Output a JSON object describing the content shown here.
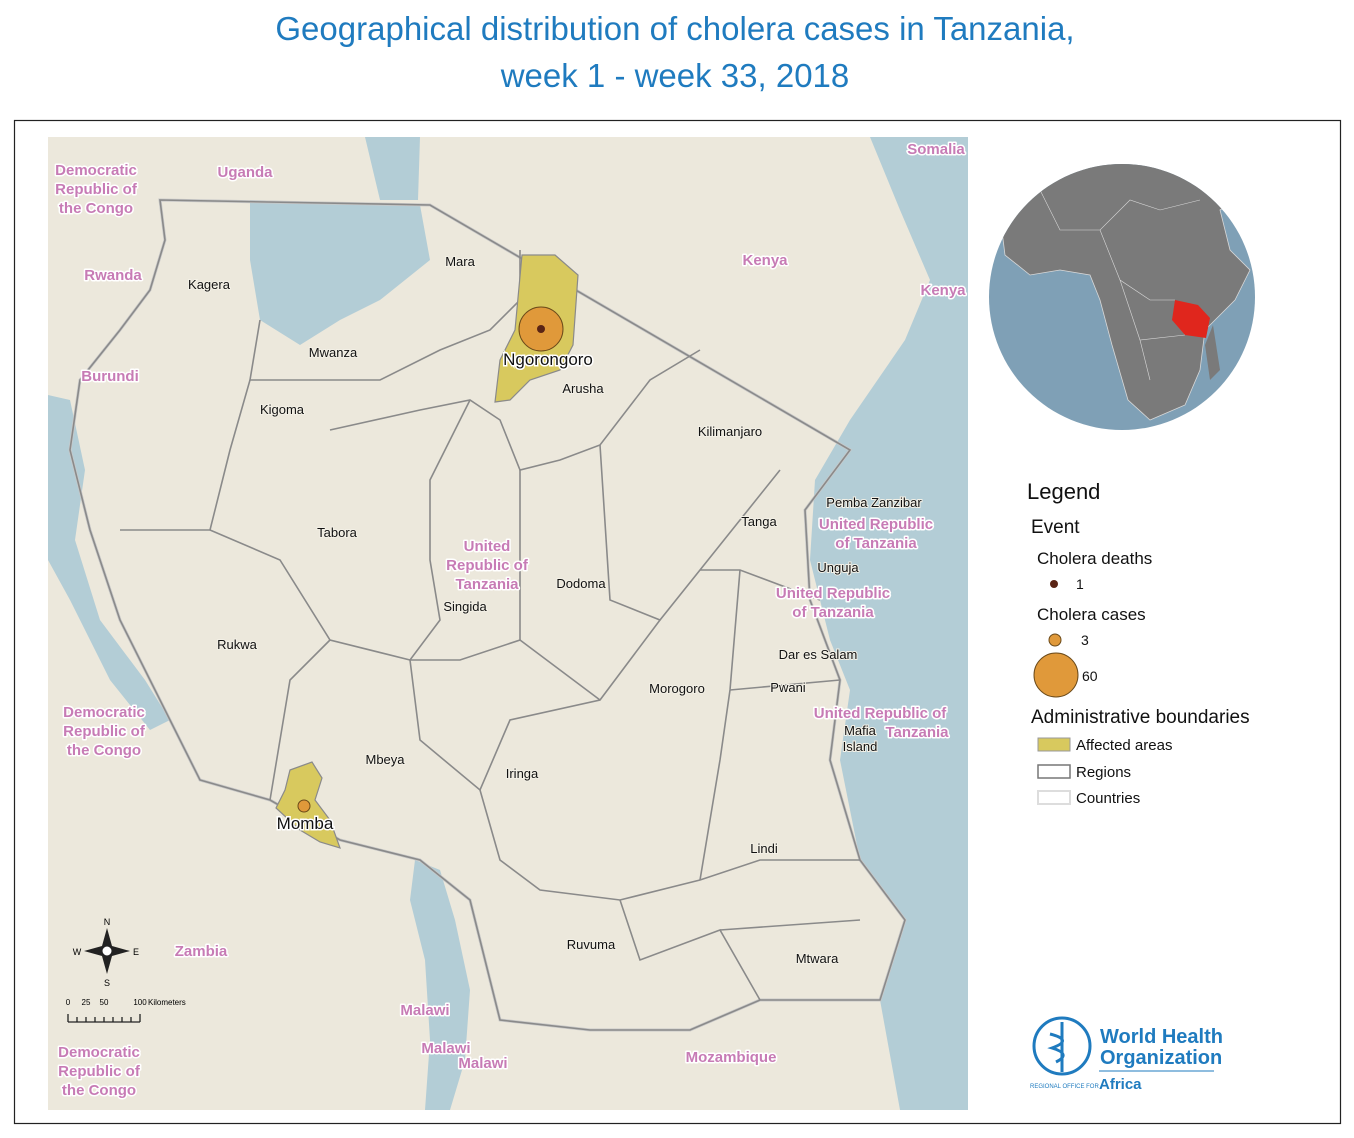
{
  "title": [
    "Geographical distribution of cholera cases in Tanzania,",
    "week 1 - week 33, 2018"
  ],
  "map": {
    "countries": [
      [
        "Democratic",
        "Republic of",
        "the Congo"
      ],
      [
        "Uganda"
      ],
      [
        "Somalia"
      ],
      [
        "Kenya"
      ],
      [
        "Kenya"
      ],
      [
        "Rwanda"
      ],
      [
        "Burundi"
      ],
      [
        "United",
        "Republic of",
        "Tanzania"
      ],
      [
        "United Republic",
        "of Tanzania"
      ],
      [
        "United Republic",
        "of Tanzania"
      ],
      [
        "United Republic of",
        "Tanzania"
      ],
      [
        "Democratic",
        "Republic of",
        "the Congo"
      ],
      [
        "Zambia"
      ],
      [
        "Malawi"
      ],
      [
        "Malawi"
      ],
      [
        "Malawi"
      ],
      [
        "Mozambique"
      ],
      [
        "Democratic",
        "Republic of",
        "the Congo"
      ]
    ],
    "regions": [
      [
        "Kagera"
      ],
      [
        "Mara"
      ],
      [
        "Mwanza"
      ],
      [
        "Arusha"
      ],
      [
        "Kigoma"
      ],
      [
        "Kilimanjaro"
      ],
      [
        "Tabora"
      ],
      [
        "Singida"
      ],
      [
        "Dodoma"
      ],
      [
        "Tanga"
      ],
      [
        "Pemba Zanzibar"
      ],
      [
        "Unguja"
      ],
      [
        "Rukwa"
      ],
      [
        "Dar es Salam"
      ],
      [
        "Pwani"
      ],
      [
        "Morogoro"
      ],
      [
        "Mbeya"
      ],
      [
        "Iringa"
      ],
      [
        "Mafia",
        "Island"
      ],
      [
        "Lindi"
      ],
      [
        "Ruvuma"
      ],
      [
        "Mtwara"
      ]
    ],
    "affected": [
      "Ngorongoro",
      "Momba"
    ],
    "compass": [
      "N",
      "S",
      "W",
      "E"
    ],
    "scale": {
      "ticks": [
        "0",
        "25",
        "50",
        "100"
      ],
      "unit": "Kilometers"
    }
  },
  "legend": {
    "title": "Legend",
    "event": "Event",
    "deaths": {
      "label": "Cholera deaths",
      "items": [
        "1"
      ]
    },
    "cases": {
      "label": "Cholera cases",
      "items": [
        "3",
        "60"
      ]
    },
    "boundaries": {
      "label": "Administrative boundaries",
      "items": [
        "Affected areas",
        "Regions",
        "Countries"
      ]
    }
  },
  "logo": {
    "name": [
      "World Health",
      "Organization"
    ],
    "office": "REGIONAL OFFICE FOR",
    "region": "Africa"
  }
}
